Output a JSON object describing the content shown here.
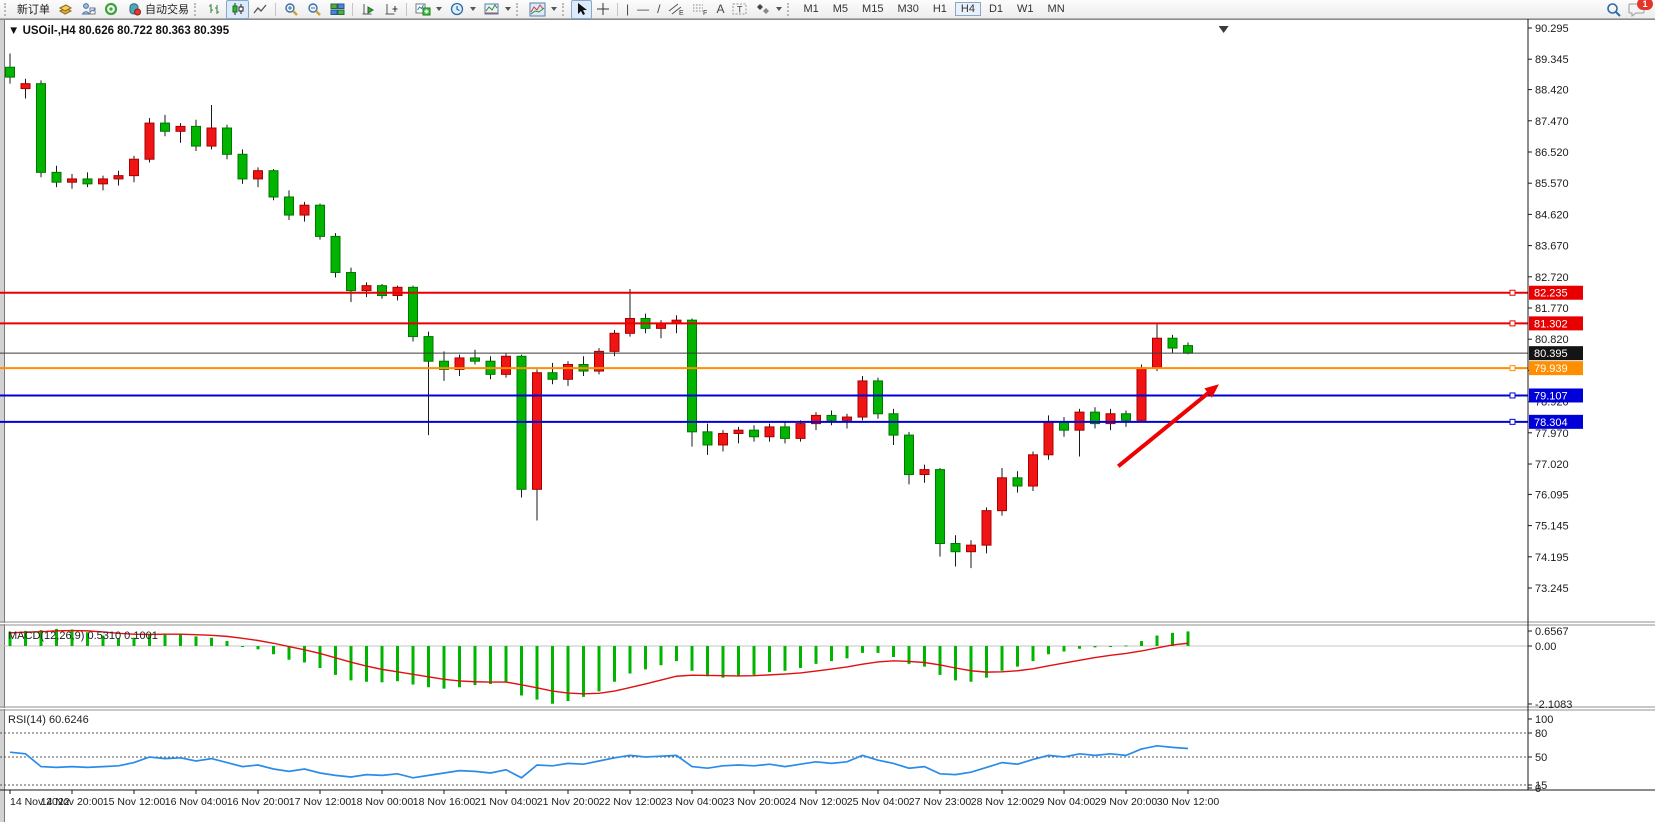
{
  "toolbar": {
    "new_order": "新订单",
    "autotrade": "自动交易",
    "timeframes": [
      "M1",
      "M5",
      "M15",
      "M30",
      "H1",
      "H4",
      "D1",
      "W1",
      "MN"
    ],
    "active_timeframe": "H4",
    "notification_badge": "1",
    "icon_glyphs": {
      "vertical-line-icon": "|",
      "horizontal-line-icon": "—",
      "trendline-icon": "/",
      "text-icon": "A",
      "text-label-icon": "T",
      "channel-icon-sub": "E",
      "fibonacci-icon-sub": "F"
    }
  },
  "chart": {
    "collapse_arrow": "▼",
    "symbol_period": "USOil-,H4",
    "ohlc_line": "80.626 80.722 80.363 80.395"
  },
  "chart_data": {
    "type": "candlestick",
    "symbol": "USOil-",
    "timeframe": "H4",
    "title": "USOil-,H4  80.626 80.722 80.363 80.395",
    "ohlc_display": {
      "open": "80.626",
      "high": "80.722",
      "low": "80.363",
      "close": "80.395"
    },
    "up_color_convention": "red-up-green-down",
    "colors": {
      "bull_fill": "#f01414",
      "bull_stroke": "#aa0000",
      "bear_fill": "#00b400",
      "bear_stroke": "#007800",
      "wick": "#1a1a1a",
      "macd_histogram": "#00b400",
      "macd_signal": "#e01010",
      "rsi_line": "#2a8cea",
      "arrow": "#f00000"
    },
    "y_axis": {
      "min": 73.245,
      "max": 90.295,
      "ticks": [
        90.295,
        89.345,
        88.42,
        87.47,
        86.52,
        85.57,
        84.62,
        83.67,
        82.72,
        81.77,
        80.82,
        79.87,
        78.92,
        77.97,
        77.02,
        76.095,
        75.145,
        74.195,
        73.245
      ]
    },
    "x_axis": {
      "candles_per_label": 4,
      "labels": [
        "14 Nov 2022",
        "14 Nov 20:00",
        "15 Nov 12:00",
        "16 Nov 04:00",
        "16 Nov 20:00",
        "17 Nov 12:00",
        "18 Nov 00:00",
        "18 Nov 16:00",
        "21 Nov 04:00",
        "21 Nov 20:00",
        "22 Nov 12:00",
        "23 Nov 04:00",
        "23 Nov 20:00",
        "24 Nov 12:00",
        "25 Nov 04:00",
        "27 Nov 23:00",
        "28 Nov 12:00",
        "29 Nov 04:00",
        "29 Nov 20:00",
        "30 Nov 12:00"
      ]
    },
    "candles": [
      [
        89.1,
        89.52,
        88.6,
        88.8
      ],
      [
        88.45,
        88.75,
        88.15,
        88.6
      ],
      [
        88.6,
        88.7,
        85.75,
        85.9
      ],
      [
        85.9,
        86.1,
        85.45,
        85.6
      ],
      [
        85.6,
        85.85,
        85.4,
        85.7
      ],
      [
        85.7,
        85.9,
        85.45,
        85.55
      ],
      [
        85.55,
        85.8,
        85.35,
        85.7
      ],
      [
        85.7,
        85.95,
        85.5,
        85.8
      ],
      [
        85.8,
        86.4,
        85.6,
        86.3
      ],
      [
        86.3,
        87.55,
        86.2,
        87.4
      ],
      [
        87.4,
        87.65,
        87.0,
        87.15
      ],
      [
        87.15,
        87.4,
        86.8,
        87.3
      ],
      [
        87.3,
        87.5,
        86.55,
        86.7
      ],
      [
        86.7,
        87.95,
        86.6,
        87.25
      ],
      [
        87.25,
        87.35,
        86.3,
        86.45
      ],
      [
        86.45,
        86.6,
        85.55,
        85.7
      ],
      [
        85.7,
        86.05,
        85.45,
        85.95
      ],
      [
        85.95,
        86.0,
        85.05,
        85.15
      ],
      [
        85.15,
        85.35,
        84.45,
        84.6
      ],
      [
        84.6,
        85.0,
        84.4,
        84.9
      ],
      [
        84.9,
        84.95,
        83.85,
        83.95
      ],
      [
        83.95,
        84.05,
        82.7,
        82.85
      ],
      [
        82.85,
        83.0,
        81.95,
        82.3
      ],
      [
        82.3,
        82.55,
        82.1,
        82.45
      ],
      [
        82.45,
        82.5,
        82.05,
        82.15
      ],
      [
        82.15,
        82.45,
        82.0,
        82.4
      ],
      [
        82.4,
        82.45,
        80.75,
        80.9
      ],
      [
        80.9,
        81.05,
        77.9,
        80.15
      ],
      [
        80.15,
        80.45,
        79.55,
        79.9
      ],
      [
        79.9,
        80.35,
        79.7,
        80.25
      ],
      [
        80.25,
        80.5,
        80.05,
        80.15
      ],
      [
        80.15,
        80.3,
        79.6,
        79.75
      ],
      [
        79.75,
        80.4,
        79.65,
        80.3
      ],
      [
        80.3,
        80.35,
        76.0,
        76.25
      ],
      [
        76.25,
        79.9,
        75.3,
        79.8
      ],
      [
        79.8,
        80.1,
        79.45,
        79.6
      ],
      [
        79.6,
        80.15,
        79.4,
        80.05
      ],
      [
        80.05,
        80.3,
        79.7,
        79.85
      ],
      [
        79.85,
        80.55,
        79.75,
        80.45
      ],
      [
        80.45,
        81.1,
        80.3,
        81.0
      ],
      [
        81.0,
        82.35,
        80.9,
        81.45
      ],
      [
        81.45,
        81.6,
        81.0,
        81.15
      ],
      [
        81.15,
        81.4,
        80.85,
        81.3
      ],
      [
        81.3,
        81.55,
        81.0,
        81.4
      ],
      [
        81.4,
        81.45,
        77.55,
        78.0
      ],
      [
        78.0,
        78.25,
        77.3,
        77.6
      ],
      [
        77.6,
        78.05,
        77.4,
        77.95
      ],
      [
        77.95,
        78.15,
        77.65,
        78.05
      ],
      [
        78.05,
        78.2,
        77.7,
        77.85
      ],
      [
        77.85,
        78.25,
        77.7,
        78.15
      ],
      [
        78.15,
        78.3,
        77.65,
        77.8
      ],
      [
        77.8,
        78.35,
        77.7,
        78.25
      ],
      [
        78.25,
        78.6,
        78.05,
        78.5
      ],
      [
        78.5,
        78.65,
        78.2,
        78.35
      ],
      [
        78.35,
        78.55,
        78.1,
        78.45
      ],
      [
        78.45,
        79.7,
        78.35,
        79.55
      ],
      [
        79.55,
        79.65,
        78.4,
        78.55
      ],
      [
        78.55,
        78.7,
        77.6,
        77.9
      ],
      [
        77.9,
        78.0,
        76.4,
        76.7
      ],
      [
        76.7,
        77.0,
        76.45,
        76.85
      ],
      [
        76.85,
        76.9,
        74.2,
        74.6
      ],
      [
        74.6,
        74.85,
        73.9,
        74.35
      ],
      [
        74.35,
        74.7,
        73.85,
        74.55
      ],
      [
        74.55,
        75.7,
        74.3,
        75.6
      ],
      [
        75.6,
        76.9,
        75.45,
        76.6
      ],
      [
        76.6,
        76.8,
        76.15,
        76.35
      ],
      [
        76.35,
        77.4,
        76.2,
        77.3
      ],
      [
        77.3,
        78.5,
        77.15,
        78.3
      ],
      [
        78.3,
        78.45,
        77.85,
        78.05
      ],
      [
        78.05,
        78.7,
        77.25,
        78.6
      ],
      [
        78.6,
        78.75,
        78.1,
        78.25
      ],
      [
        78.25,
        78.7,
        78.05,
        78.55
      ],
      [
        78.55,
        78.65,
        78.15,
        78.35
      ],
      [
        78.35,
        80.05,
        78.3,
        79.95
      ],
      [
        79.95,
        81.28,
        79.85,
        80.85
      ],
      [
        80.85,
        80.95,
        80.4,
        80.55
      ],
      [
        80.626,
        80.722,
        80.363,
        80.395
      ]
    ],
    "hlines": [
      {
        "price": 82.235,
        "label": "82.235",
        "color": "#e80000",
        "width": 2,
        "handle": true
      },
      {
        "price": 81.302,
        "label": "81.302",
        "color": "#e80000",
        "width": 2,
        "handle": true
      },
      {
        "price": 80.395,
        "label": "80.395",
        "color": "#3c3c3c",
        "width": 1,
        "handle": false,
        "badge": "#141414",
        "role": "bid-price-line"
      },
      {
        "price": 79.939,
        "label": "79.939",
        "color": "#ff8e00",
        "width": 2,
        "handle": true
      },
      {
        "price": 79.107,
        "label": "79.107",
        "color": "#0000d8",
        "width": 2,
        "handle": true
      },
      {
        "price": 78.304,
        "label": "78.304",
        "color": "#0000d8",
        "width": 2,
        "handle": true
      }
    ],
    "arrow_annotation": {
      "from_index": 71.5,
      "from_price": 76.95,
      "to_index": 78.0,
      "to_price": 79.45
    },
    "shift_marker_index": 78.3,
    "macd": {
      "label": "MACD(12,26,9)",
      "value_main": "0.5310",
      "value_signal": "0.1001",
      "axis_labels": [
        "0.6567",
        "0.00",
        "-2.1083"
      ],
      "axis_values": [
        0.6567,
        0.0,
        -2.1083
      ],
      "histogram": [
        0.52,
        0.55,
        0.58,
        0.62,
        0.6,
        0.5,
        0.38,
        0.28,
        0.3,
        0.42,
        0.45,
        0.42,
        0.35,
        0.3,
        0.18,
        0.0,
        -0.12,
        -0.3,
        -0.5,
        -0.6,
        -0.8,
        -1.05,
        -1.25,
        -1.3,
        -1.32,
        -1.28,
        -1.4,
        -1.5,
        -1.55,
        -1.5,
        -1.42,
        -1.38,
        -1.3,
        -1.8,
        -1.95,
        -2.1,
        -2.0,
        -1.85,
        -1.65,
        -1.3,
        -1.0,
        -0.85,
        -0.7,
        -0.55,
        -0.9,
        -1.1,
        -1.15,
        -1.1,
        -1.05,
        -0.95,
        -0.9,
        -0.8,
        -0.65,
        -0.55,
        -0.45,
        -0.25,
        -0.25,
        -0.4,
        -0.65,
        -0.75,
        -1.05,
        -1.25,
        -1.3,
        -1.15,
        -0.9,
        -0.75,
        -0.55,
        -0.3,
        -0.2,
        -0.1,
        -0.05,
        0.0,
        0.02,
        0.18,
        0.38,
        0.48,
        0.531
      ],
      "signal": [
        0.48,
        0.5,
        0.52,
        0.55,
        0.56,
        0.55,
        0.51,
        0.46,
        0.43,
        0.42,
        0.43,
        0.43,
        0.41,
        0.39,
        0.35,
        0.28,
        0.2,
        0.1,
        -0.02,
        -0.14,
        -0.27,
        -0.43,
        -0.59,
        -0.73,
        -0.85,
        -0.94,
        -1.03,
        -1.12,
        -1.21,
        -1.27,
        -1.3,
        -1.31,
        -1.31,
        -1.41,
        -1.52,
        -1.64,
        -1.71,
        -1.74,
        -1.72,
        -1.64,
        -1.51,
        -1.38,
        -1.24,
        -1.1,
        -1.06,
        -1.07,
        -1.08,
        -1.09,
        -1.08,
        -1.05,
        -1.02,
        -0.98,
        -0.91,
        -0.84,
        -0.76,
        -0.66,
        -0.58,
        -0.54,
        -0.56,
        -0.6,
        -0.69,
        -0.8,
        -0.9,
        -0.95,
        -0.94,
        -0.9,
        -0.83,
        -0.72,
        -0.62,
        -0.52,
        -0.42,
        -0.34,
        -0.27,
        -0.18,
        -0.07,
        0.04,
        0.1001
      ]
    },
    "rsi": {
      "label": "RSI(14)",
      "value": "60.6246",
      "levels": [
        80,
        50,
        15
      ],
      "axis_labels": [
        "100",
        "80",
        "50",
        "15",
        "0"
      ],
      "values": [
        56,
        54,
        38,
        37,
        38,
        37,
        38,
        39,
        43,
        50,
        48,
        49,
        45,
        48,
        43,
        38,
        40,
        35,
        32,
        35,
        30,
        27,
        25,
        28,
        27,
        29,
        24,
        27,
        30,
        33,
        32,
        30,
        34,
        24,
        40,
        39,
        42,
        41,
        45,
        49,
        52,
        50,
        51,
        52,
        38,
        36,
        39,
        40,
        39,
        41,
        38,
        41,
        44,
        42,
        44,
        52,
        46,
        42,
        36,
        38,
        29,
        28,
        31,
        37,
        43,
        41,
        47,
        52,
        50,
        54,
        52,
        54,
        52,
        60,
        64,
        62,
        60.62
      ]
    }
  }
}
